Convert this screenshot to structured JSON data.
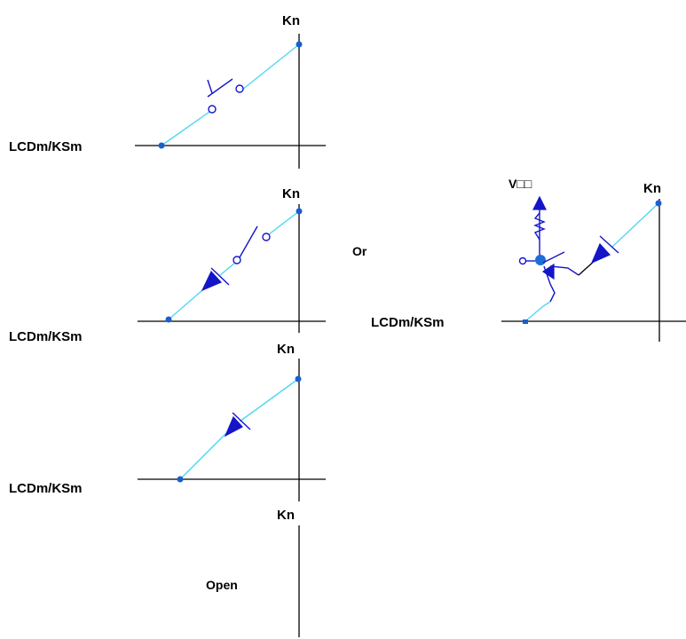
{
  "diagram": {
    "panels": [
      {
        "id": "switch",
        "node_label": "Kn",
        "line_label": "LCDm/KSm"
      },
      {
        "id": "switch-diode",
        "node_label": "Kn",
        "line_label": "LCDm/KSm"
      },
      {
        "id": "diode",
        "node_label": "Kn",
        "line_label": "LCDm/KSm"
      },
      {
        "id": "open",
        "node_label": "Kn",
        "state_label": "Open"
      }
    ],
    "alt_panel": {
      "node_label": "Kn",
      "line_label": "LCDm/KSm",
      "supply_label": "V□□"
    },
    "or_label": "Or"
  },
  "colors": {
    "wire": "#4fd8f0",
    "component": "#1515c8",
    "node_dot": "#1a5fd1",
    "axis": "#000000"
  }
}
